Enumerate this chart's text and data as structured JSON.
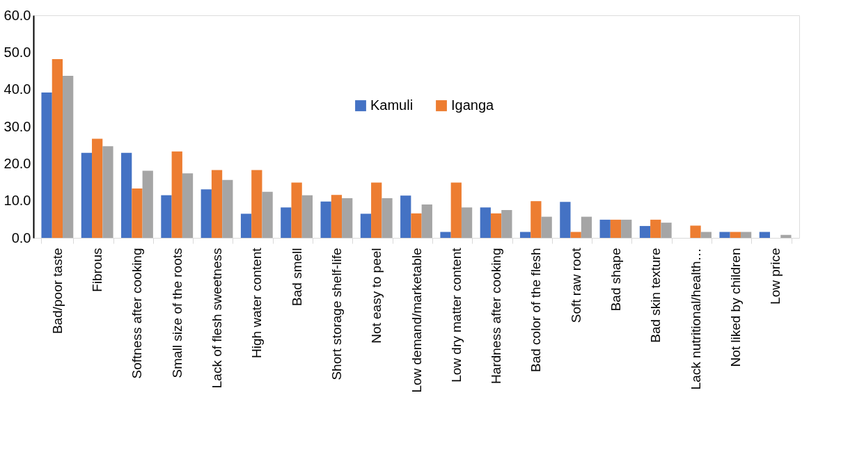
{
  "chart_data": {
    "type": "bar",
    "categories": [
      "Bad/poor taste",
      "Fibrous",
      "Softness after cooking",
      "Small size of the roots",
      "Lack of flesh sweetness",
      "High water content",
      "Bad smell",
      "Short storage shelf-life",
      "Not easy to peel",
      "Low demand/marketable",
      "Low dry matter content",
      "Hardness after cooking",
      "Bad color of the flesh",
      "Soft raw root",
      "Bad shape",
      "Bad skin texture",
      "Lack nutritional/health…",
      "Not liked by children",
      "Low price"
    ],
    "series": [
      {
        "name": "Kamuli",
        "color": "#4472c4",
        "values": [
          39.2,
          22.9,
          22.9,
          11.5,
          13.1,
          6.5,
          8.2,
          9.8,
          6.5,
          11.4,
          1.6,
          8.2,
          1.6,
          9.7,
          4.9,
          3.2,
          0,
          1.6,
          1.6
        ]
      },
      {
        "name": "Iganga",
        "color": "#ed7d31",
        "values": [
          48.2,
          26.7,
          13.3,
          23.3,
          18.3,
          18.3,
          14.9,
          11.6,
          14.9,
          6.6,
          14.9,
          6.6,
          9.9,
          1.6,
          4.9,
          4.9,
          3.3,
          1.6,
          0
        ]
      },
      {
        "color": "#a5a5a5",
        "values": [
          43.7,
          24.7,
          18.1,
          17.4,
          15.6,
          12.4,
          11.5,
          10.7,
          10.7,
          9.0,
          8.2,
          7.5,
          5.7,
          5.7,
          4.9,
          4.1,
          1.6,
          1.6,
          0.8
        ]
      }
    ],
    "ylim": [
      0,
      60
    ],
    "yticks": [
      {
        "value": 0,
        "label": "0.0"
      },
      {
        "value": 10,
        "label": "10.0"
      },
      {
        "value": 20,
        "label": "20.0"
      },
      {
        "value": 30,
        "label": "30.0"
      },
      {
        "value": 40,
        "label": "40.0"
      },
      {
        "value": 50,
        "label": "50.0"
      },
      {
        "value": 60,
        "label": "60.0"
      }
    ],
    "grid": false,
    "legend": "top"
  }
}
